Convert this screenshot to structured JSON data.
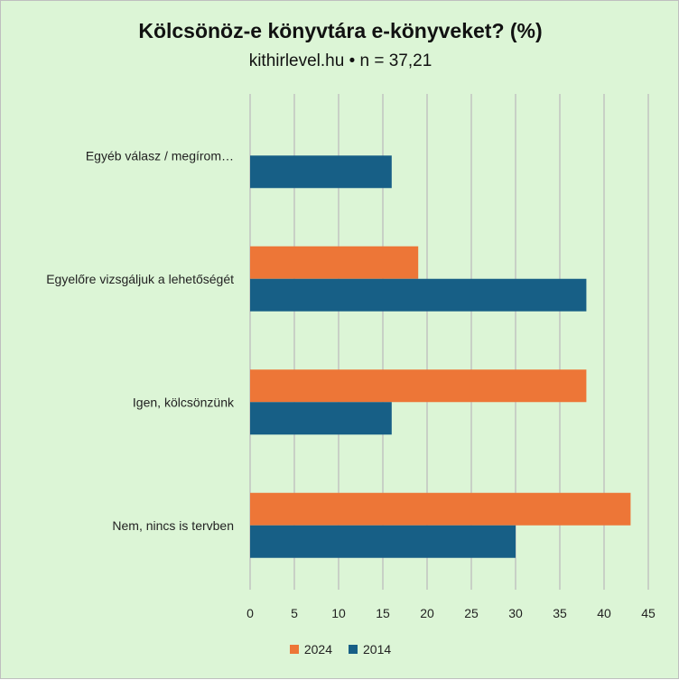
{
  "chart_data": {
    "type": "bar",
    "orientation": "horizontal",
    "title": "Kölcsönöz-e könyvtára e-könyveket? (%)",
    "subtitle": "kithirlevel.hu • n = 37,21",
    "categories": [
      "Egyéb válasz / megírom…",
      "Egyelőre vizsgáljuk a lehetőségét",
      "Igen, kölcsönzünk",
      "Nem, nincs is tervben"
    ],
    "series": [
      {
        "name": "2024",
        "color": "#ed7637",
        "values": [
          0,
          19,
          38,
          43
        ]
      },
      {
        "name": "2014",
        "color": "#175f86",
        "values": [
          16,
          38,
          16,
          30
        ]
      }
    ],
    "xlim": [
      0,
      45
    ],
    "xticks": [
      "0",
      "5",
      "10",
      "15",
      "20",
      "25",
      "30",
      "35",
      "40",
      "45"
    ],
    "grid": true,
    "legend_position": "bottom"
  }
}
